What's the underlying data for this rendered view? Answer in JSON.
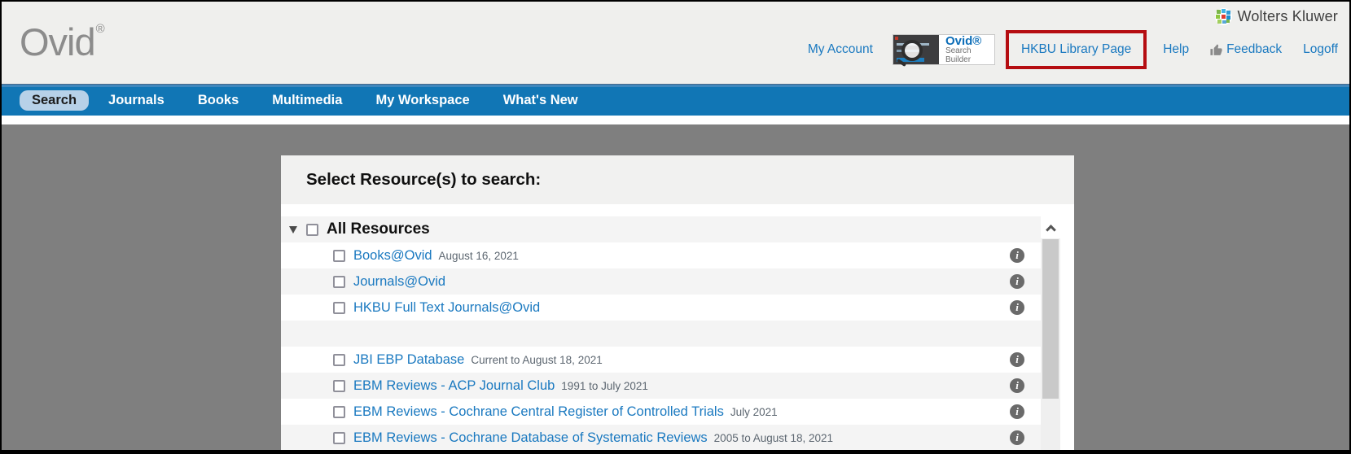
{
  "header": {
    "logo_text": "Ovid",
    "logo_reg": "®",
    "brand": "Wolters Kluwer",
    "links": {
      "my_account": "My Account",
      "library_page": "HKBU Library Page",
      "help": "Help",
      "feedback": "Feedback",
      "logoff": "Logoff"
    },
    "search_builder": {
      "title": "Ovid®",
      "subtitle": "Search Builder"
    }
  },
  "nav": {
    "items": [
      {
        "label": "Search",
        "active": true
      },
      {
        "label": "Journals",
        "active": false
      },
      {
        "label": "Books",
        "active": false
      },
      {
        "label": "Multimedia",
        "active": false
      },
      {
        "label": "My Workspace",
        "active": false
      },
      {
        "label": "What's New",
        "active": false
      }
    ]
  },
  "panel": {
    "title": "Select Resource(s) to search:",
    "group_label": "All Resources",
    "resources": [
      {
        "name": "Books@Ovid",
        "coverage": "August 16, 2021",
        "spacer": false
      },
      {
        "name": "Journals@Ovid",
        "coverage": "",
        "spacer": false
      },
      {
        "name": "HKBU Full Text Journals@Ovid",
        "coverage": "",
        "spacer": false
      },
      {
        "name": "",
        "coverage": "",
        "spacer": true
      },
      {
        "name": "JBI EBP Database",
        "coverage": "Current to August 18, 2021",
        "spacer": false
      },
      {
        "name": "EBM Reviews - ACP Journal Club",
        "coverage": "1991 to July 2021",
        "spacer": false
      },
      {
        "name": "EBM Reviews - Cochrane Central Register of Controlled Trials",
        "coverage": "July 2021",
        "spacer": false
      },
      {
        "name": "EBM Reviews - Cochrane Database of Systematic Reviews",
        "coverage": "2005 to August 18, 2021",
        "spacer": false
      }
    ],
    "info_icon": "i"
  },
  "colors": {
    "nav_blue": "#1176b5",
    "active_pill": "#b7d1e8",
    "link_blue": "#1a79c0",
    "page_gray": "#7f7f7f",
    "annotation_red": "#b50d11",
    "header_bg": "#efefed",
    "alt_row": "#f4f4f4",
    "info_gray": "#6a6a6a"
  }
}
